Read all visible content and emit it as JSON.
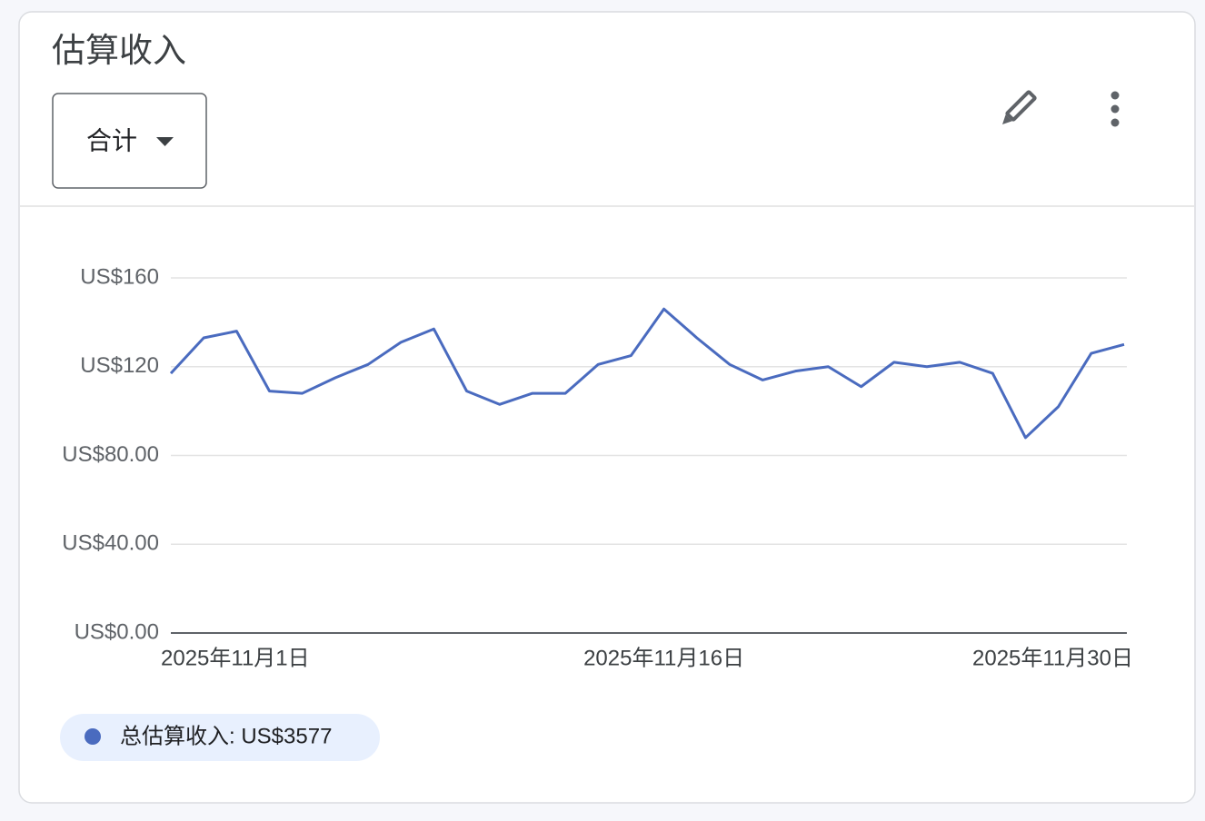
{
  "header": {
    "dropdown": "合计"
  },
  "chart_data": {
    "type": "line",
    "title": "估算收入",
    "categories": [
      "2025年11月1日",
      null,
      null,
      null,
      null,
      null,
      null,
      null,
      null,
      null,
      null,
      null,
      null,
      null,
      null,
      "2025年11月16日",
      null,
      null,
      null,
      null,
      null,
      null,
      null,
      null,
      null,
      null,
      null,
      null,
      null,
      "2025年11月30日"
    ],
    "series": [
      {
        "name": "总估算收入: US$3577",
        "color": "#4a6bbf",
        "values": [
          117,
          133,
          136,
          109,
          108,
          115,
          121,
          131,
          137,
          109,
          103,
          108,
          108,
          121,
          125,
          146,
          133,
          121,
          114,
          118,
          120,
          111,
          122,
          120,
          122,
          117,
          88,
          102,
          126,
          130
        ]
      }
    ],
    "ylim": [
      0,
      160
    ],
    "yticks": [
      {
        "value": 0,
        "label": "US$0.00"
      },
      {
        "value": 40,
        "label": "US$40.00"
      },
      {
        "value": 80,
        "label": "US$80.00"
      },
      {
        "value": 120,
        "label": "US$120"
      },
      {
        "value": 160,
        "label": "US$160"
      }
    ],
    "grid": true
  }
}
